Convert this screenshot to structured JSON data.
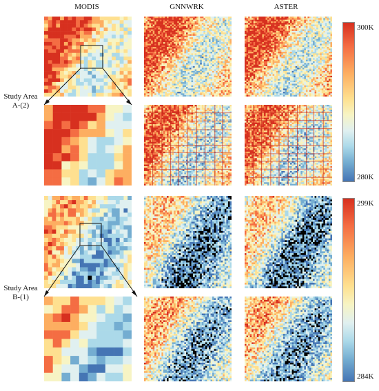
{
  "columns": [
    "MODIS",
    "GNNWRK",
    "ASTER"
  ],
  "study_areas": [
    {
      "label_line1": "Study Area",
      "label_line2": "A-(2)",
      "cbar_max": "300K",
      "cbar_min": "280K"
    },
    {
      "label_line1": "Study Area",
      "label_line2": "B-(1)",
      "cbar_max": "299K",
      "cbar_min": "284K"
    }
  ],
  "colormap": [
    "#d7301f",
    "#f46d43",
    "#fdae61",
    "#fee090",
    "#f7f4c4",
    "#e0f0f0",
    "#abd9e9",
    "#74add1",
    "#4575b4"
  ]
}
